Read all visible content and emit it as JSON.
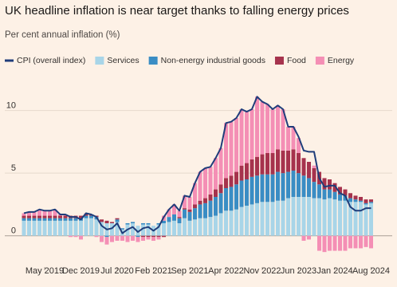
{
  "chart_data": {
    "type": "bar",
    "title": "UK headline inflation is near target thanks to falling energy prices",
    "subtitle": "Per cent annual inflation (%)",
    "categories": [
      null,
      null,
      null,
      null,
      "May 2019",
      null,
      null,
      null,
      null,
      null,
      null,
      "Dec 2019",
      null,
      null,
      null,
      null,
      null,
      null,
      "Jul 2020",
      null,
      null,
      null,
      null,
      null,
      null,
      "Feb 2021",
      null,
      null,
      null,
      null,
      null,
      null,
      "Sep 2021",
      null,
      null,
      null,
      null,
      null,
      null,
      "Apr 2022",
      null,
      null,
      null,
      null,
      null,
      null,
      "Nov 2022",
      null,
      null,
      null,
      null,
      null,
      null,
      "Jun 2023",
      null,
      null,
      null,
      null,
      null,
      null,
      "Jan 2024",
      null,
      null,
      null,
      null,
      null,
      null,
      "Aug 2024"
    ],
    "ylim": [
      -2.5,
      11.5
    ],
    "yticks": [
      0,
      5,
      10
    ],
    "grid": true,
    "stacked": true,
    "series": [
      {
        "name": "CPI (overall index)",
        "type": "line",
        "color": "#1f3d7a",
        "values": [
          1.8,
          1.9,
          1.9,
          2.1,
          2.0,
          2.0,
          2.1,
          1.7,
          1.7,
          1.5,
          1.5,
          1.3,
          1.8,
          1.7,
          1.5,
          0.8,
          0.5,
          0.6,
          1.0,
          0.2,
          0.5,
          0.7,
          0.3,
          0.6,
          0.7,
          0.4,
          0.7,
          1.5,
          2.1,
          2.5,
          2.0,
          3.2,
          3.1,
          4.2,
          5.1,
          5.4,
          5.5,
          6.2,
          7.0,
          9.0,
          9.1,
          9.4,
          10.1,
          9.9,
          10.1,
          11.1,
          10.7,
          10.5,
          10.1,
          10.4,
          10.1,
          8.7,
          8.7,
          7.9,
          6.8,
          6.7,
          6.7,
          4.6,
          3.9,
          4.0,
          4.0,
          3.4,
          3.2,
          2.3,
          2.0,
          2.0,
          2.2,
          2.2
        ]
      },
      {
        "name": "Services",
        "color": "#a8d5e8",
        "values": [
          1.2,
          1.2,
          1.2,
          1.2,
          1.2,
          1.2,
          1.2,
          1.2,
          1.2,
          1.2,
          1.2,
          1.2,
          1.4,
          1.4,
          1.3,
          1.1,
          1.0,
          1.0,
          1.1,
          0.5,
          0.9,
          1.0,
          0.8,
          0.9,
          0.9,
          0.8,
          0.9,
          1.0,
          1.1,
          1.2,
          1.0,
          1.4,
          1.2,
          1.3,
          1.4,
          1.4,
          1.5,
          1.6,
          1.8,
          2.0,
          2.0,
          2.1,
          2.3,
          2.4,
          2.5,
          2.6,
          2.7,
          2.7,
          2.7,
          2.8,
          2.8,
          3.0,
          3.1,
          3.1,
          3.1,
          3.1,
          3.0,
          3.0,
          2.9,
          3.0,
          2.9,
          2.8,
          2.8,
          2.7,
          2.7,
          2.7,
          2.5,
          2.6
        ]
      },
      {
        "name": "Non-energy industrial goods",
        "color": "#3a8dc4",
        "values": [
          0.2,
          0.2,
          0.2,
          0.2,
          0.2,
          0.2,
          0.2,
          0.2,
          0.2,
          0.2,
          0.2,
          0.2,
          0.2,
          0.2,
          0.2,
          0.0,
          -0.1,
          0.0,
          0.2,
          0.1,
          0.1,
          0.1,
          -0.1,
          0.1,
          0.1,
          0.0,
          0.1,
          0.2,
          0.4,
          0.5,
          0.4,
          0.7,
          0.7,
          0.9,
          1.1,
          1.2,
          1.3,
          1.5,
          1.6,
          1.8,
          1.9,
          2.0,
          2.1,
          2.1,
          2.2,
          2.2,
          2.2,
          2.2,
          2.2,
          2.3,
          2.2,
          2.1,
          2.1,
          1.9,
          1.7,
          1.5,
          1.3,
          1.1,
          0.8,
          0.7,
          0.6,
          0.5,
          0.4,
          0.3,
          0.2,
          0.1,
          0.1,
          0.1
        ]
      },
      {
        "name": "Food",
        "color": "#a6334d",
        "values": [
          0.2,
          0.2,
          0.2,
          0.2,
          0.2,
          0.2,
          0.2,
          0.2,
          0.2,
          0.2,
          0.2,
          0.2,
          0.1,
          0.1,
          0.1,
          0.2,
          0.2,
          0.1,
          0.1,
          0.0,
          0.0,
          0.0,
          0.0,
          -0.1,
          -0.1,
          -0.1,
          -0.1,
          -0.1,
          0.0,
          0.0,
          0.1,
          0.1,
          0.2,
          0.3,
          0.3,
          0.4,
          0.5,
          0.6,
          0.7,
          0.8,
          0.9,
          1.0,
          1.2,
          1.3,
          1.4,
          1.5,
          1.6,
          1.7,
          1.7,
          1.8,
          1.8,
          1.7,
          1.7,
          1.6,
          1.4,
          1.3,
          1.1,
          1.0,
          0.9,
          0.8,
          0.7,
          0.6,
          0.5,
          0.4,
          0.3,
          0.3,
          0.3,
          0.2
        ]
      },
      {
        "name": "Energy",
        "color": "#f48fb5",
        "values": [
          0.2,
          0.3,
          0.3,
          0.5,
          0.4,
          0.4,
          0.5,
          0.1,
          0.1,
          -0.1,
          -0.1,
          -0.3,
          0.1,
          0.0,
          -0.1,
          -0.5,
          -0.6,
          -0.5,
          -0.4,
          -0.4,
          -0.5,
          -0.4,
          -0.4,
          -0.3,
          -0.2,
          -0.3,
          -0.2,
          0.4,
          0.6,
          0.8,
          0.5,
          1.0,
          1.0,
          1.7,
          2.3,
          2.4,
          2.2,
          2.5,
          2.9,
          4.4,
          4.3,
          4.3,
          4.5,
          4.1,
          4.0,
          4.8,
          4.2,
          3.9,
          3.5,
          3.5,
          3.3,
          1.9,
          1.8,
          1.2,
          -0.4,
          -0.3,
          0.2,
          -1.2,
          -1.3,
          -1.2,
          -1.2,
          -1.2,
          -1.2,
          -1.0,
          -1.0,
          -1.0,
          -0.9,
          -1.0
        ]
      }
    ]
  }
}
